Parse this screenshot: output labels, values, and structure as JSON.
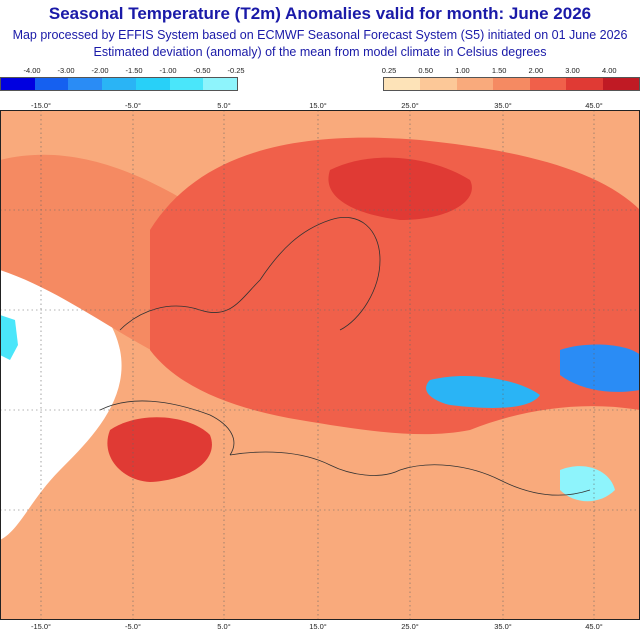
{
  "header": {
    "title": "Seasonal Temperature (T2m) Anomalies valid for month: June 2026",
    "subtitle1": "Map processed by EFFIS System based on ECMWF Seasonal Forecast System (S5) initiated on 01 June 2026",
    "subtitle2": "Estimated deviation (anomaly) of the mean from model climate in Celsius degrees"
  },
  "legend": {
    "cold": [
      {
        "label": "-4.00",
        "color": "#0000e0"
      },
      {
        "label": "-3.00",
        "color": "#1560f0"
      },
      {
        "label": "-2.00",
        "color": "#2a8cf5"
      },
      {
        "label": "-1.50",
        "color": "#2ab4f5"
      },
      {
        "label": "-1.00",
        "color": "#28d0f8"
      },
      {
        "label": "-0.50",
        "color": "#4ae6fa"
      },
      {
        "label": "-0.25",
        "color": "#8ef4fc"
      }
    ],
    "warm": [
      {
        "label": "0.25",
        "color": "#fde3b8"
      },
      {
        "label": "0.50",
        "color": "#fcc898"
      },
      {
        "label": "1.00",
        "color": "#f9aa7c"
      },
      {
        "label": "1.50",
        "color": "#f58a62"
      },
      {
        "label": "2.00",
        "color": "#f0604a"
      },
      {
        "label": "3.00",
        "color": "#e03a34"
      },
      {
        "label": "4.00",
        "color": "#c01a24"
      }
    ]
  },
  "axes": {
    "lon_ticks": [
      "-15.0°",
      "-5.0°",
      "5.0°",
      "15.0°",
      "25.0°",
      "35.0°",
      "45.0°"
    ]
  },
  "colors": {
    "background": "#ffffff",
    "title": "#1a1aa8"
  }
}
